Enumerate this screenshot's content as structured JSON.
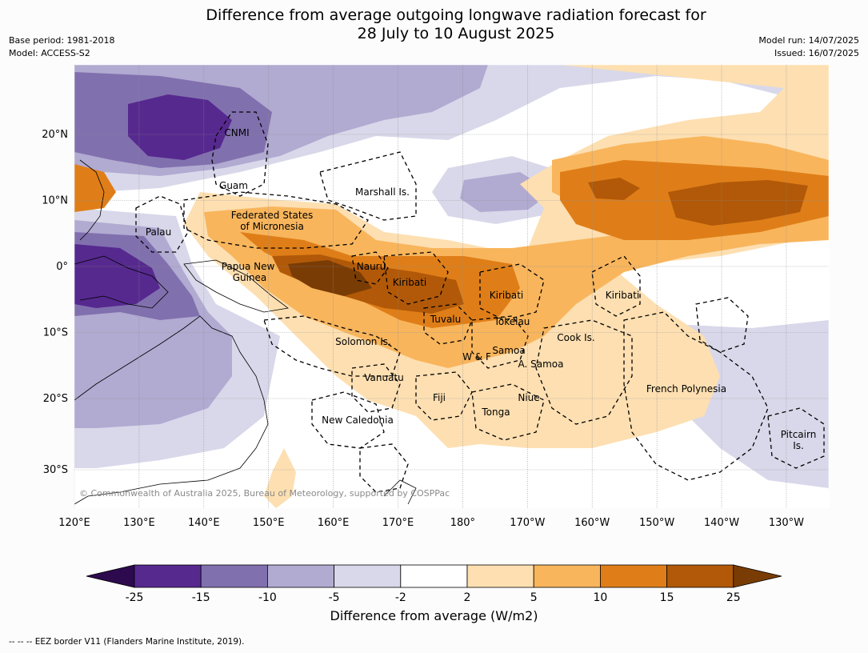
{
  "title_line1": "Difference from average outgoing longwave radiation forecast for",
  "title_line2": "28 July to 10 August 2025",
  "meta_left": [
    "Base period: 1981-2018",
    "Model: ACCESS-S2"
  ],
  "meta_right": [
    "Model run: 14/07/2025",
    "Issued: 16/07/2025"
  ],
  "lon_labels": [
    "120°E",
    "130°E",
    "140°E",
    "150°E",
    "160°E",
    "170°E",
    "180°",
    "170°W",
    "160°W",
    "150°W",
    "140°W",
    "130°W"
  ],
  "lat_labels": [
    "20°N",
    "10°N",
    "0°",
    "10°S",
    "20°S",
    "30°S"
  ],
  "places": [
    "CNMI",
    "Guam",
    "Marshall Is.",
    "Federated States",
    "of Micronesia",
    "Palau",
    "Papua New",
    "Guinea",
    "Nauru",
    "Kiribati",
    "Kiribati",
    "Kiribati",
    "Tuvalu",
    "Tokelau",
    "Solomon Is.",
    "Samoa",
    "W & F",
    "A. Samoa",
    "Cook Is.",
    "Vanuatu",
    "Fiji",
    "Niue",
    "Tonga",
    "New Caledonia",
    "French Polynesia",
    "Pitcairn",
    "Is."
  ],
  "copyright": "© Commonwealth of Australia 2025, Bureau of Meteorology, supported by COSPPac",
  "colorbar": {
    "ticks": [
      "-25",
      "-15",
      "-10",
      "-5",
      "-2",
      "2",
      "5",
      "10",
      "15",
      "25"
    ],
    "colors": [
      "#2d0a4e",
      "#56298f",
      "#8170ae",
      "#b1aad1",
      "#d8d8ea",
      "#ffffff",
      "#fddfb1",
      "#f8b55c",
      "#df7e18",
      "#b15908",
      "#7a3c05"
    ],
    "label": "Difference from average (W/m2)"
  },
  "footer": "--  --  -- EEZ border V11 (Flanders Marine Institute, 2019)."
}
